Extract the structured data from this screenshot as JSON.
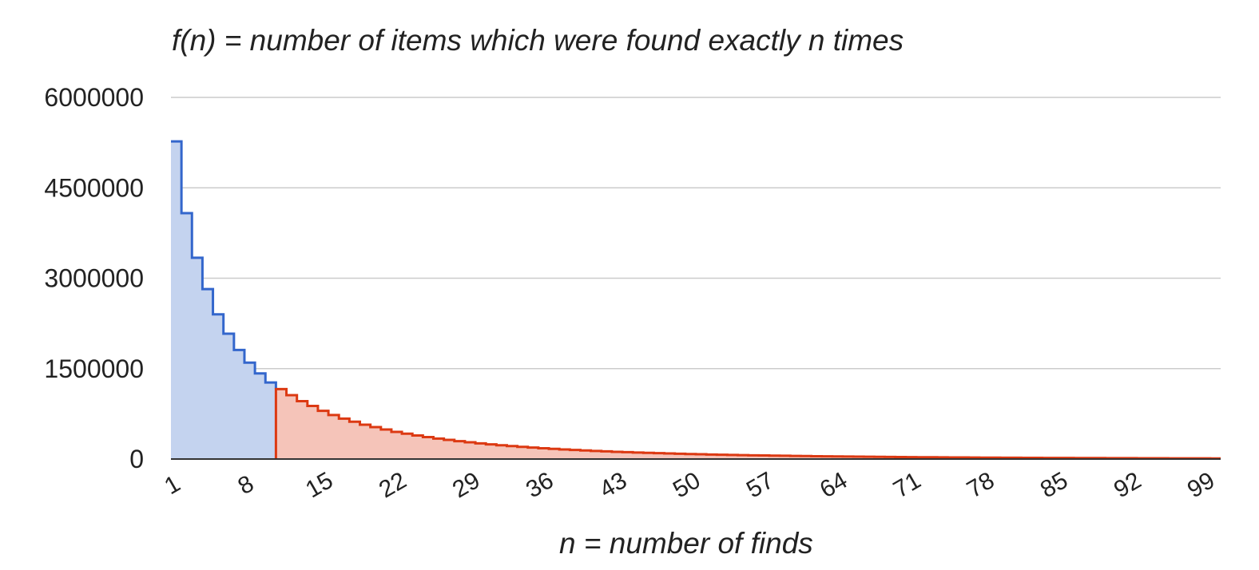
{
  "chart_data": {
    "type": "area",
    "title": "f(n) = number of items which were found exactly n times",
    "xlabel": "n = number of finds",
    "ylabel": "",
    "ylim": [
      0,
      6000000
    ],
    "yticks": [
      "6000000",
      "4500000",
      "3000000",
      "1500000",
      "0"
    ],
    "ytick_values": [
      6000000,
      4500000,
      3000000,
      1500000,
      0
    ],
    "xticks": [
      "1",
      "8",
      "15",
      "22",
      "29",
      "36",
      "43",
      "50",
      "57",
      "64",
      "71",
      "78",
      "85",
      "92",
      "99"
    ],
    "xlim": [
      1,
      101
    ],
    "step": true,
    "grid": true,
    "colors": {
      "blue": "#3366cc",
      "blue_fill": "#c4d3ef",
      "red": "#dc3912",
      "red_fill": "#f5c4b9",
      "grid": "#cccccc",
      "axis": "#333333"
    },
    "series": [
      {
        "color": "#3366cc",
        "x": [
          1,
          2,
          3,
          4,
          5,
          6,
          7,
          8,
          9,
          10,
          11
        ],
        "values": [
          5270000,
          4080000,
          3340000,
          2820000,
          2400000,
          2080000,
          1810000,
          1600000,
          1420000,
          1270000,
          1160000
        ]
      },
      {
        "color": "#dc3912",
        "x": [
          11,
          12,
          13,
          14,
          15,
          16,
          17,
          18,
          19,
          20,
          21,
          22,
          23,
          24,
          25,
          26,
          27,
          28,
          29,
          30,
          31,
          32,
          33,
          34,
          35,
          36,
          37,
          38,
          39,
          40,
          41,
          42,
          43,
          44,
          45,
          46,
          47,
          48,
          49,
          50,
          51,
          52,
          53,
          54,
          55,
          56,
          57,
          58,
          59,
          60,
          61,
          62,
          63,
          64,
          65,
          66,
          67,
          68,
          69,
          70,
          71,
          72,
          73,
          74,
          75,
          76,
          77,
          78,
          79,
          80,
          81,
          82,
          83,
          84,
          85,
          86,
          87,
          88,
          89,
          90,
          91,
          92,
          93,
          94,
          95,
          96,
          97,
          98,
          99,
          100
        ],
        "values": [
          1160000,
          1060000,
          960000,
          880000,
          800000,
          730000,
          670000,
          620000,
          570000,
          530000,
          490000,
          450000,
          420000,
          390000,
          365000,
          340000,
          318000,
          297000,
          278000,
          260000,
          244000,
          229000,
          215000,
          202000,
          190000,
          179000,
          169000,
          159000,
          150000,
          142000,
          134000,
          127000,
          120000,
          114000,
          108000,
          102000,
          97000,
          92000,
          87000,
          83000,
          79000,
          75000,
          71000,
          68000,
          65000,
          62000,
          59000,
          56000,
          54000,
          51000,
          49000,
          47000,
          45000,
          43000,
          41000,
          39000,
          37500,
          36000,
          34500,
          33000,
          31500,
          30000,
          29000,
          28000,
          27000,
          26000,
          25000,
          24000,
          23000,
          22000,
          21000,
          20500,
          19800,
          19000,
          18300,
          17600,
          17000,
          16400,
          15800,
          15200,
          14700,
          14200,
          13700,
          13200,
          12700,
          12300,
          11900,
          11500,
          11100,
          10700
        ]
      }
    ]
  }
}
